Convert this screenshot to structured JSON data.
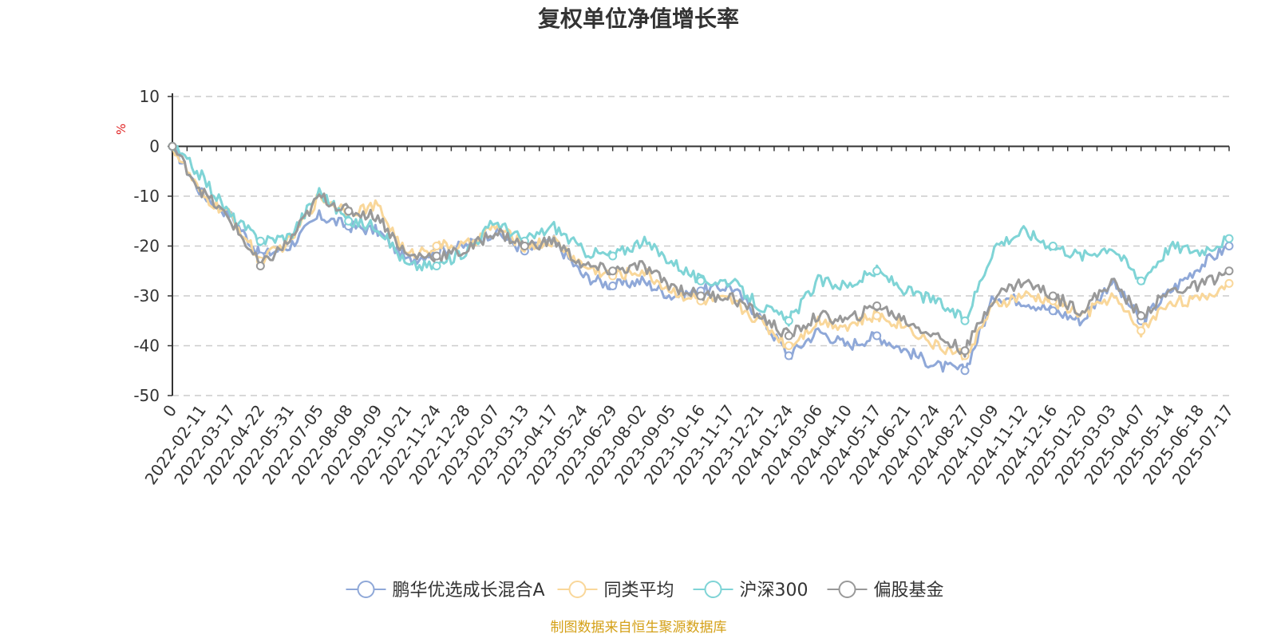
{
  "chart_data": {
    "type": "line",
    "title": "复权单位净值增长率",
    "ylabel": "%",
    "ylim": [
      -50,
      10
    ],
    "yticks": [
      10,
      0,
      -10,
      -20,
      -30,
      -40,
      -50
    ],
    "x_tick_labels": [
      "0",
      "2022-02-11",
      "2022-03-17",
      "2022-04-22",
      "2022-05-31",
      "2022-07-05",
      "2022-08-08",
      "2022-09-09",
      "2022-10-21",
      "2022-11-24",
      "2022-12-28",
      "2023-02-07",
      "2023-03-13",
      "2023-04-17",
      "2023-05-24",
      "2023-06-29",
      "2023-08-02",
      "2023-09-05",
      "2023-10-16",
      "2023-11-17",
      "2023-12-21",
      "2024-01-24",
      "2024-03-06",
      "2024-04-10",
      "2024-05-17",
      "2024-06-21",
      "2024-07-24",
      "2024-08-27",
      "2024-10-09",
      "2024-11-12",
      "2024-12-16",
      "2025-01-20",
      "2025-03-03",
      "2025-04-07",
      "2025-05-14",
      "2025-06-18",
      "2025-07-17"
    ],
    "grid": "horizontal dashed",
    "legend_position": "bottom-center",
    "series": [
      {
        "name": "鹏华优选成长混合A",
        "color": "#8fa8d8",
        "values": [
          0,
          -9.5,
          -14,
          -22,
          -20,
          -14,
          -16,
          -17,
          -23,
          -21,
          -20,
          -17,
          -21,
          -19,
          -26,
          -28,
          -27,
          -30,
          -29,
          -28,
          -34,
          -42,
          -37,
          -40,
          -38,
          -41,
          -44,
          -45,
          -30,
          -31,
          -33,
          -35,
          -27,
          -35,
          -29,
          -24,
          -20
        ]
      },
      {
        "name": "同类平均",
        "color": "#f9d79a",
        "values": [
          0,
          -10,
          -14,
          -23,
          -19,
          -10,
          -13,
          -12,
          -22,
          -20,
          -20,
          -16,
          -20,
          -19,
          -24,
          -26,
          -25,
          -29,
          -31,
          -31,
          -35,
          -40,
          -35,
          -36,
          -34,
          -36,
          -40,
          -42,
          -32,
          -30,
          -31,
          -34,
          -30,
          -37,
          -31,
          -31,
          -27.5
        ]
      },
      {
        "name": "沪深300",
        "color": "#7fd4d6",
        "values": [
          0,
          -6,
          -14,
          -19,
          -18,
          -9,
          -15,
          -16,
          -24,
          -24,
          -21,
          -15,
          -19,
          -16,
          -21,
          -22,
          -19,
          -23,
          -27,
          -27,
          -32,
          -35,
          -27,
          -28,
          -25,
          -29,
          -31,
          -35,
          -20,
          -17,
          -20,
          -22,
          -20,
          -27,
          -20,
          -21,
          -18.5
        ]
      },
      {
        "name": "偏股基金",
        "color": "#999999",
        "values": [
          0,
          -9,
          -15,
          -24,
          -19,
          -10,
          -13,
          -14,
          -22,
          -22,
          -21,
          -17,
          -20,
          -19,
          -24,
          -25,
          -24,
          -28,
          -30,
          -30,
          -34,
          -38,
          -34,
          -35,
          -32,
          -35,
          -38,
          -41,
          -30,
          -27,
          -30,
          -33,
          -27,
          -34,
          -29,
          -28,
          -25
        ]
      }
    ]
  },
  "source_note": "制图数据来自恒生聚源数据库"
}
